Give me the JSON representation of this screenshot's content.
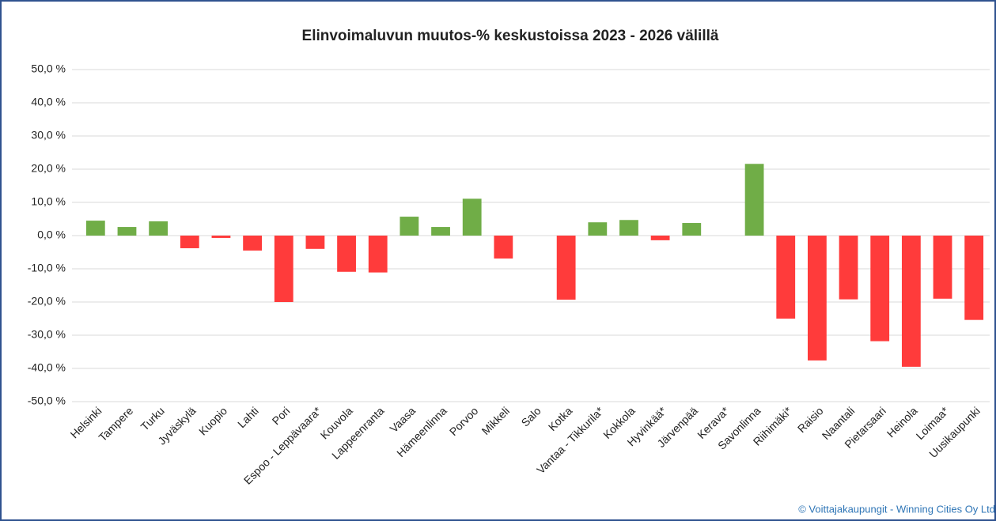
{
  "chart_data": {
    "type": "bar",
    "title": "Elinvoimaluvun muutos-% keskustoissa 2023 - 2026 välillä",
    "footer": "© Voittajakaupungit - Winning Cities Oy Ltd",
    "categories": [
      "Helsinki",
      "Tampere",
      "Turku",
      "Jyväskylä",
      "Kuopio",
      "Lahti",
      "Pori",
      "Espoo - Leppävaara*",
      "Kouvola",
      "Lappeenranta",
      "Vaasa",
      "Hämeenlinna",
      "Porvoo",
      "Mikkeli",
      "Salo",
      "Kotka",
      "Vantaa - Tikkurila*",
      "Kokkola",
      "Hyvinkää*",
      "Järvenpää",
      "Kerava*",
      "Savonlinna",
      "Riihimäki*",
      "Raisio",
      "Naantali",
      "Pietarsaari",
      "Heinola",
      "Loimaa*",
      "Uusikaupunki"
    ],
    "values": [
      4.5,
      2.6,
      4.3,
      -3.8,
      -0.7,
      -4.5,
      -20.0,
      -4.0,
      -10.9,
      -11.1,
      5.7,
      2.6,
      11.1,
      -6.9,
      null,
      -19.3,
      4.0,
      4.7,
      -1.4,
      3.8,
      null,
      21.6,
      -25.0,
      -37.6,
      -19.2,
      -31.8,
      -39.5,
      -19.0,
      -25.4
    ],
    "color": "#70ad47",
    "negative_color": "#ff3b3b",
    "ylim": [
      -50,
      50
    ],
    "yticks": [
      {
        "value": -50,
        "label": "-50,0 %"
      },
      {
        "value": -40,
        "label": "-40,0 %"
      },
      {
        "value": -30,
        "label": "-30,0 %"
      },
      {
        "value": -20,
        "label": "-20,0 %"
      },
      {
        "value": -10,
        "label": "-10,0 %"
      },
      {
        "value": 0,
        "label": "0,0 %"
      },
      {
        "value": 10,
        "label": "10,0 %"
      },
      {
        "value": 20,
        "label": "20,0 %"
      },
      {
        "value": 30,
        "label": "30,0 %"
      },
      {
        "value": 40,
        "label": "40,0 %"
      },
      {
        "value": 50,
        "label": "50,0 %"
      }
    ],
    "grid": true
  }
}
